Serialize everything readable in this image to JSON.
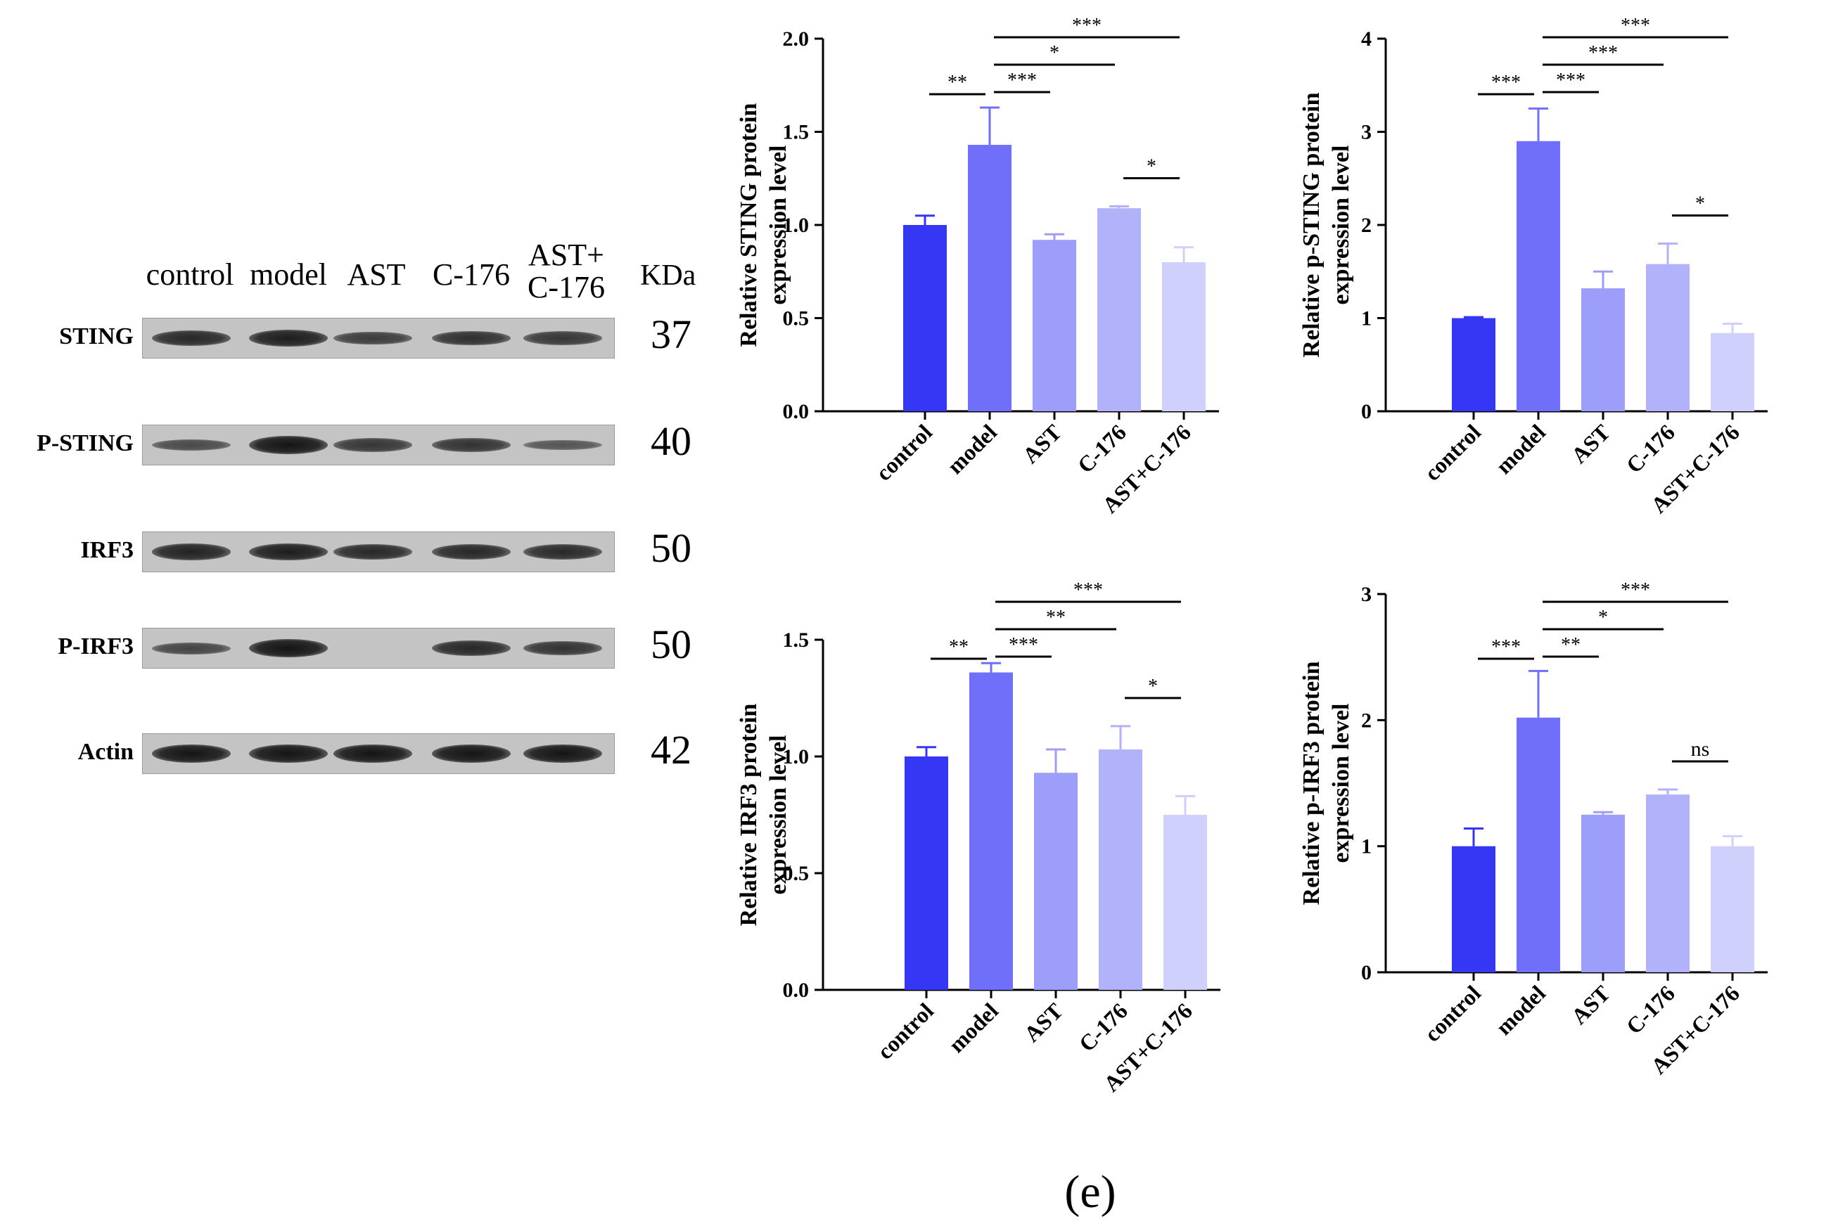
{
  "western_blot": {
    "lane_labels": [
      "control",
      "model",
      "AST",
      "C-176",
      "AST+\nC-176"
    ],
    "unit_label": "KDa",
    "rows": [
      {
        "protein": "STING",
        "mw": "37",
        "intensities": [
          0.8,
          0.9,
          0.6,
          0.72,
          0.65
        ]
      },
      {
        "protein": "P-STING",
        "mw": "40",
        "intensities": [
          0.45,
          1.0,
          0.65,
          0.7,
          0.35
        ]
      },
      {
        "protein": "IRF3",
        "mw": "50",
        "intensities": [
          0.85,
          0.9,
          0.8,
          0.8,
          0.78
        ]
      },
      {
        "protein": "P-IRF3",
        "mw": "50",
        "intensities": [
          0.5,
          1.0,
          0.0,
          0.8,
          0.7
        ]
      },
      {
        "protein": "Actin",
        "mw": "42",
        "intensities": [
          1.0,
          1.0,
          1.0,
          1.0,
          1.0
        ]
      }
    ]
  },
  "chart_data": [
    {
      "type": "bar",
      "title": "",
      "categories": [
        "control",
        "model",
        "AST",
        "C-176",
        "AST+C-176"
      ],
      "values": [
        1.0,
        1.43,
        0.92,
        1.09,
        0.8
      ],
      "errors": [
        0.05,
        0.2,
        0.03,
        0.01,
        0.08
      ],
      "ylabel": "Relative STING protein\nexpression level",
      "xlabel": "",
      "ylim": [
        0,
        2.0
      ],
      "yticks": [
        "0.0",
        "0.5",
        "1.0",
        "1.5",
        "2.0"
      ],
      "ytick_values": [
        0,
        0.5,
        1.0,
        1.5,
        2.0
      ],
      "significance": [
        {
          "from": 0,
          "to": 1,
          "label": "**"
        },
        {
          "from": 1,
          "to": 2,
          "label": "***"
        },
        {
          "from": 1,
          "to": 3,
          "label": "*"
        },
        {
          "from": 1,
          "to": 4,
          "label": "***"
        },
        {
          "from": 3,
          "to": 4,
          "label": "*"
        }
      ]
    },
    {
      "type": "bar",
      "title": "",
      "categories": [
        "control",
        "model",
        "AST",
        "C-176",
        "AST+C-176"
      ],
      "values": [
        1.0,
        2.9,
        1.32,
        1.58,
        0.84
      ],
      "errors": [
        0.01,
        0.35,
        0.18,
        0.22,
        0.1
      ],
      "ylabel": "Relative p-STING protein\nexpression level",
      "xlabel": "",
      "ylim": [
        0,
        4
      ],
      "yticks": [
        "0",
        "1",
        "2",
        "3",
        "4"
      ],
      "ytick_values": [
        0,
        1,
        2,
        3,
        4
      ],
      "significance": [
        {
          "from": 0,
          "to": 1,
          "label": "***"
        },
        {
          "from": 1,
          "to": 2,
          "label": "***"
        },
        {
          "from": 1,
          "to": 3,
          "label": "***"
        },
        {
          "from": 1,
          "to": 4,
          "label": "***"
        },
        {
          "from": 3,
          "to": 4,
          "label": "*"
        }
      ]
    },
    {
      "type": "bar",
      "title": "",
      "categories": [
        "control",
        "model",
        "AST",
        "C-176",
        "AST+C-176"
      ],
      "values": [
        1.0,
        1.36,
        0.93,
        1.03,
        0.75
      ],
      "errors": [
        0.04,
        0.04,
        0.1,
        0.1,
        0.08
      ],
      "ylabel": "Relative IRF3 protein\nexpression level",
      "xlabel": "",
      "ylim": [
        0,
        1.5
      ],
      "yticks": [
        "0.0",
        "0.5",
        "1.0",
        "1.5"
      ],
      "ytick_values": [
        0,
        0.5,
        1.0,
        1.5
      ],
      "significance": [
        {
          "from": 0,
          "to": 1,
          "label": "**"
        },
        {
          "from": 1,
          "to": 2,
          "label": "***"
        },
        {
          "from": 1,
          "to": 3,
          "label": "**"
        },
        {
          "from": 1,
          "to": 4,
          "label": "***"
        },
        {
          "from": 3,
          "to": 4,
          "label": "*"
        }
      ]
    },
    {
      "type": "bar",
      "title": "",
      "categories": [
        "control",
        "model",
        "AST",
        "C-176",
        "AST+C-176"
      ],
      "values": [
        1.0,
        2.02,
        1.25,
        1.41,
        1.0
      ],
      "errors": [
        0.14,
        0.37,
        0.02,
        0.04,
        0.08
      ],
      "ylabel": "Relative p-IRF3 protein\nexpression level",
      "xlabel": "",
      "ylim": [
        0,
        3
      ],
      "yticks": [
        "0",
        "1",
        "2",
        "3"
      ],
      "ytick_values": [
        0,
        1,
        2,
        3
      ],
      "significance": [
        {
          "from": 0,
          "to": 1,
          "label": "***"
        },
        {
          "from": 1,
          "to": 2,
          "label": "**"
        },
        {
          "from": 1,
          "to": 3,
          "label": "*"
        },
        {
          "from": 1,
          "to": 4,
          "label": "***"
        },
        {
          "from": 3,
          "to": 4,
          "label": "ns"
        }
      ]
    }
  ],
  "bar_colors": [
    "#3636f5",
    "#6f6ff9",
    "#9d9dfa",
    "#b2b2fb",
    "#d0d0fc"
  ],
  "caption": "(e)"
}
